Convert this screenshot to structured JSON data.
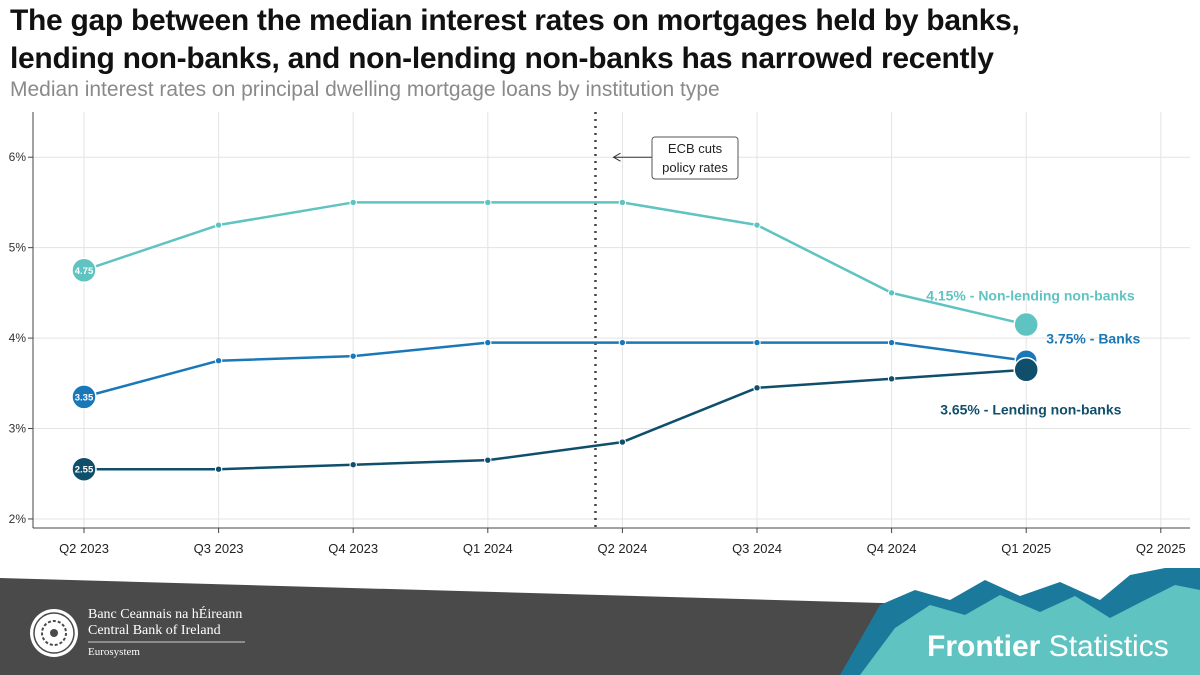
{
  "header": {
    "title_line1": "The gap between the median interest rates on mortgages held by banks,",
    "title_line2": "lending non-banks, and non-lending non-banks has narrowed recently",
    "subtitle": "Median interest rates on principal dwelling mortgage loans by institution type"
  },
  "chart_data": {
    "type": "line",
    "categories": [
      "Q2 2023",
      "Q3 2023",
      "Q4 2023",
      "Q1 2024",
      "Q2 2024",
      "Q3 2024",
      "Q4 2024",
      "Q1 2025",
      "Q2 2025"
    ],
    "y_ticks": [
      2,
      3,
      4,
      5,
      6
    ],
    "y_tick_labels": [
      "2%",
      "3%",
      "4%",
      "5%",
      "6%"
    ],
    "ylim": [
      1.9,
      6.5
    ],
    "grid": true,
    "series": [
      {
        "name": "Non-lending non-banks",
        "color": "#5fc4c1",
        "values": [
          4.75,
          5.25,
          5.5,
          5.5,
          5.5,
          5.25,
          4.5,
          4.15,
          null
        ],
        "start_label": "4.75",
        "end_label": "4.15% - Non-lending non-banks"
      },
      {
        "name": "Banks",
        "color": "#1b78b8",
        "values": [
          3.35,
          3.75,
          3.8,
          3.95,
          3.95,
          3.95,
          3.95,
          3.75,
          null
        ],
        "start_label": "3.35",
        "end_label": "3.75% - Banks"
      },
      {
        "name": "Lending non-banks",
        "color": "#0f4f6b",
        "values": [
          2.55,
          2.55,
          2.6,
          2.65,
          2.85,
          3.45,
          3.55,
          3.65,
          null
        ],
        "start_label": "2.55",
        "end_label": "3.65% - Lending non-banks"
      }
    ],
    "annotation": {
      "text_line1": "ECB cuts",
      "text_line2": "policy rates",
      "x_position": 3.8,
      "arrow_y": 6.0
    }
  },
  "footer": {
    "bank_irish": "Banc Ceannais na hÉireann",
    "bank_english": "Central Bank of Ireland",
    "eurosystem": "Eurosystem",
    "brand_bold": "Frontier",
    "brand_regular": "Statistics"
  }
}
